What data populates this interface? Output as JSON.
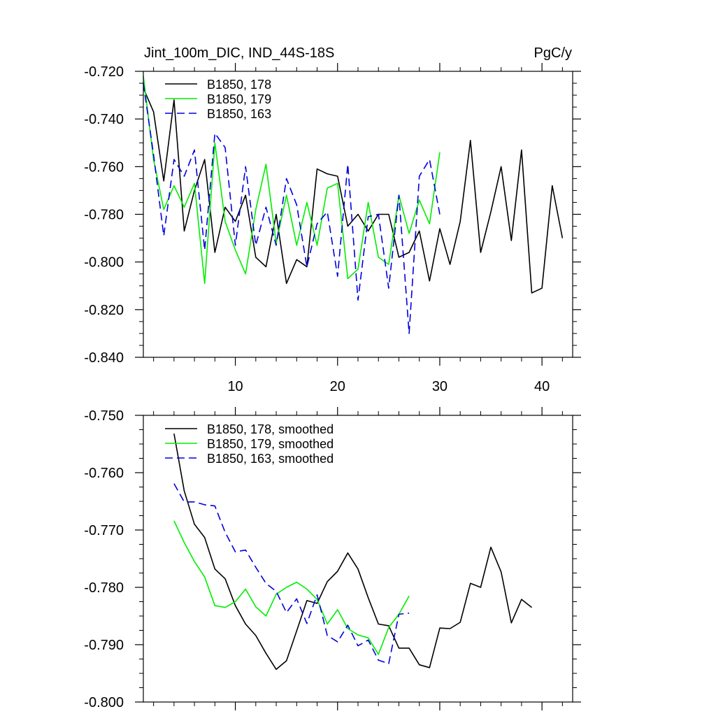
{
  "chart_data": [
    {
      "type": "line",
      "title_left": "Jint_100m_DIC, IND_44S-18S",
      "title_right": "PgC/y",
      "xlabel": "",
      "ylabel": "",
      "xlim": [
        1,
        43
      ],
      "ylim": [
        -0.84,
        -0.72
      ],
      "yticks": [
        -0.72,
        -0.74,
        -0.76,
        -0.78,
        -0.8,
        -0.82,
        -0.84
      ],
      "ytick_labels": [
        "-0.720",
        "-0.740",
        "-0.760",
        "-0.780",
        "-0.800",
        "-0.820",
        "-0.840"
      ],
      "xticks": [
        10,
        20,
        30,
        40
      ],
      "xtick_labels": [
        "10",
        "20",
        "30",
        "40"
      ],
      "legend_position": "top-left",
      "series": [
        {
          "name": "B1850, 178",
          "color": "#000000",
          "dash": "solid",
          "x": [
            1,
            2,
            3,
            4,
            5,
            6,
            7,
            8,
            9,
            10,
            11,
            12,
            13,
            14,
            15,
            16,
            17,
            18,
            19,
            20,
            21,
            22,
            23,
            24,
            25,
            26,
            27,
            28,
            29,
            30,
            31,
            32,
            33,
            34,
            35,
            36,
            37,
            38,
            39,
            40,
            41,
            42
          ],
          "values": [
            -0.727,
            -0.737,
            -0.766,
            -0.732,
            -0.787,
            -0.77,
            -0.757,
            -0.796,
            -0.777,
            -0.783,
            -0.772,
            -0.798,
            -0.802,
            -0.78,
            -0.809,
            -0.799,
            -0.802,
            -0.761,
            -0.763,
            -0.764,
            -0.785,
            -0.78,
            -0.787,
            -0.78,
            -0.78,
            -0.798,
            -0.796,
            -0.787,
            -0.808,
            -0.786,
            -0.801,
            -0.783,
            -0.749,
            -0.796,
            -0.779,
            -0.76,
            -0.791,
            -0.753,
            -0.813,
            -0.811,
            -0.768,
            -0.79
          ]
        },
        {
          "name": "B1850, 179",
          "color": "#00ee00",
          "dash": "solid",
          "x": [
            1,
            2,
            3,
            4,
            5,
            6,
            7,
            8,
            9,
            10,
            11,
            12,
            13,
            14,
            15,
            16,
            17,
            18,
            19,
            20,
            21,
            22,
            23,
            24,
            25,
            26,
            27,
            28,
            29,
            30
          ],
          "values": [
            -0.722,
            -0.757,
            -0.778,
            -0.768,
            -0.777,
            -0.767,
            -0.809,
            -0.75,
            -0.783,
            -0.795,
            -0.805,
            -0.778,
            -0.759,
            -0.792,
            -0.772,
            -0.793,
            -0.775,
            -0.793,
            -0.769,
            -0.767,
            -0.807,
            -0.803,
            -0.775,
            -0.798,
            -0.801,
            -0.772,
            -0.788,
            -0.774,
            -0.784,
            -0.754
          ]
        },
        {
          "name": "B1850, 163",
          "color": "#0000dd",
          "dash": "dashed",
          "x": [
            1,
            2,
            3,
            4,
            5,
            6,
            7,
            8,
            9,
            10,
            11,
            12,
            13,
            14,
            15,
            16,
            17,
            18,
            19,
            20,
            21,
            22,
            23,
            24,
            25,
            26,
            27,
            28,
            29,
            30
          ],
          "values": [
            -0.725,
            -0.755,
            -0.789,
            -0.757,
            -0.764,
            -0.753,
            -0.795,
            -0.746,
            -0.752,
            -0.793,
            -0.76,
            -0.793,
            -0.777,
            -0.793,
            -0.765,
            -0.776,
            -0.802,
            -0.784,
            -0.779,
            -0.806,
            -0.759,
            -0.816,
            -0.781,
            -0.78,
            -0.811,
            -0.772,
            -0.83,
            -0.764,
            -0.757,
            -0.78
          ]
        }
      ]
    },
    {
      "type": "line",
      "title_left": "",
      "title_right": "",
      "xlabel": "",
      "ylabel": "",
      "xlim": [
        1,
        43
      ],
      "ylim": [
        -0.8,
        -0.75
      ],
      "yticks": [
        -0.75,
        -0.76,
        -0.77,
        -0.78,
        -0.79,
        -0.8
      ],
      "ytick_labels": [
        "-0.750",
        "-0.760",
        "-0.770",
        "-0.780",
        "-0.790",
        "-0.800"
      ],
      "xticks": [
        10,
        20,
        30,
        40
      ],
      "xtick_labels": [],
      "legend_position": "top-left",
      "series": [
        {
          "name": "B1850, 178, smoothed",
          "color": "#000000",
          "dash": "solid",
          "x": [
            4,
            5,
            6,
            7,
            8,
            9,
            10,
            11,
            12,
            13,
            14,
            15,
            16,
            17,
            18,
            19,
            20,
            21,
            22,
            23,
            24,
            25,
            26,
            27,
            28,
            29,
            30,
            31,
            32,
            33,
            34,
            35,
            36,
            37,
            38,
            39
          ],
          "values": [
            -0.7532,
            -0.7632,
            -0.769,
            -0.7713,
            -0.7768,
            -0.7785,
            -0.7832,
            -0.7864,
            -0.7884,
            -0.7915,
            -0.7943,
            -0.7928,
            -0.7876,
            -0.7823,
            -0.7828,
            -0.779,
            -0.7772,
            -0.774,
            -0.7768,
            -0.7818,
            -0.7864,
            -0.7867,
            -0.7906,
            -0.7906,
            -0.7935,
            -0.794,
            -0.7871,
            -0.7872,
            -0.7861,
            -0.7793,
            -0.78,
            -0.773,
            -0.7773,
            -0.7862,
            -0.7821,
            -0.7835
          ]
        },
        {
          "name": "B1850, 179, smoothed",
          "color": "#00ee00",
          "dash": "solid",
          "x": [
            4,
            5,
            6,
            7,
            8,
            9,
            10,
            11,
            12,
            13,
            14,
            15,
            16,
            17,
            18,
            19,
            20,
            21,
            22,
            23,
            24,
            25,
            26,
            27
          ],
          "values": [
            -0.7684,
            -0.7722,
            -0.7755,
            -0.7782,
            -0.7832,
            -0.7835,
            -0.7825,
            -0.7803,
            -0.7834,
            -0.785,
            -0.7812,
            -0.78,
            -0.7791,
            -0.7803,
            -0.7821,
            -0.7864,
            -0.7839,
            -0.7872,
            -0.7883,
            -0.7888,
            -0.7917,
            -0.787,
            -0.7847,
            -0.7815
          ]
        },
        {
          "name": "B1850, 163, smoothed",
          "color": "#0000dd",
          "dash": "dashed",
          "x": [
            4,
            5,
            6,
            7,
            8,
            9,
            10,
            11,
            12,
            13,
            14,
            15,
            16,
            17,
            18,
            19,
            20,
            21,
            22,
            23,
            24,
            25,
            26,
            27
          ],
          "values": [
            -0.7619,
            -0.7651,
            -0.7651,
            -0.7656,
            -0.7658,
            -0.7704,
            -0.7738,
            -0.7735,
            -0.7765,
            -0.7793,
            -0.7807,
            -0.7844,
            -0.782,
            -0.7863,
            -0.7813,
            -0.7884,
            -0.7895,
            -0.7866,
            -0.7902,
            -0.7892,
            -0.7927,
            -0.7933,
            -0.7847,
            -0.7845
          ]
        }
      ]
    }
  ]
}
